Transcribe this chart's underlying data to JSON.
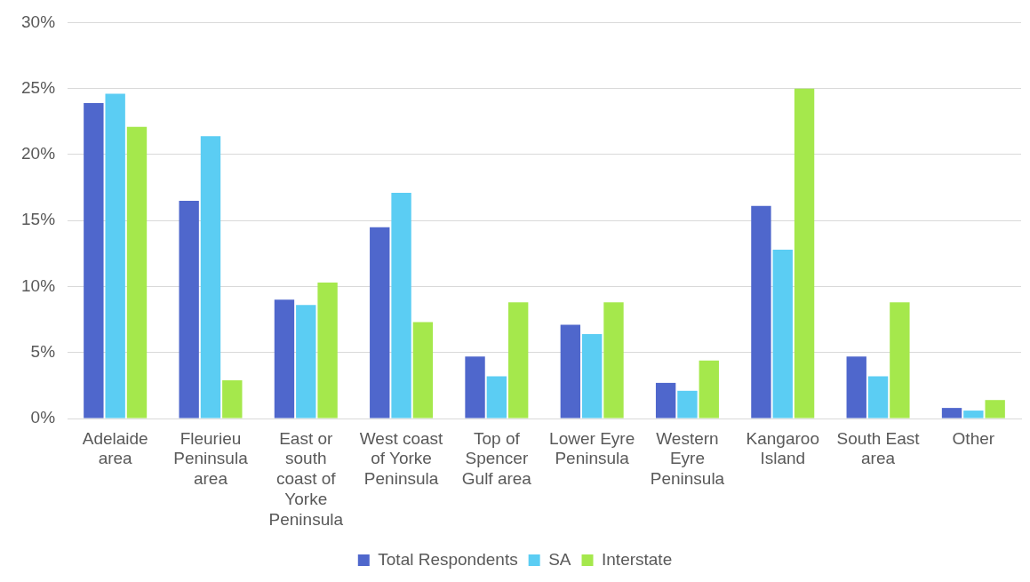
{
  "chart_data": {
    "type": "bar",
    "categories": [
      "Adelaide area",
      "Fleurieu Peninsula area",
      "East or south coast of Yorke Peninsula",
      "West coast of Yorke Peninsula",
      "Top of Spencer Gulf area",
      "Lower Eyre Peninsula",
      "Western Eyre Peninsula",
      "Kangaroo Island",
      "South East area",
      "Other"
    ],
    "series": [
      {
        "name": "Total Respondents",
        "color": "#4f67cc",
        "values": [
          23.9,
          16.5,
          9.0,
          14.5,
          4.7,
          7.1,
          2.7,
          16.1,
          4.7,
          0.8
        ]
      },
      {
        "name": "SA",
        "color": "#5bcdf3",
        "values": [
          24.6,
          21.4,
          8.6,
          17.1,
          3.2,
          6.4,
          2.1,
          12.8,
          3.2,
          0.6
        ]
      },
      {
        "name": "Interstate",
        "color": "#a5e84c",
        "values": [
          22.1,
          2.9,
          10.3,
          7.3,
          8.8,
          8.8,
          4.4,
          25.0,
          8.8,
          1.4
        ]
      }
    ],
    "ylim": [
      0,
      30
    ],
    "yticks": [
      {
        "value": 0,
        "label": "0%"
      },
      {
        "value": 5,
        "label": "5%"
      },
      {
        "value": 10,
        "label": "10%"
      },
      {
        "value": 15,
        "label": "15%"
      },
      {
        "value": 20,
        "label": "20%"
      },
      {
        "value": 25,
        "label": "25%"
      },
      {
        "value": 30,
        "label": "30%"
      }
    ],
    "grid": "y",
    "legend": "bottom"
  }
}
